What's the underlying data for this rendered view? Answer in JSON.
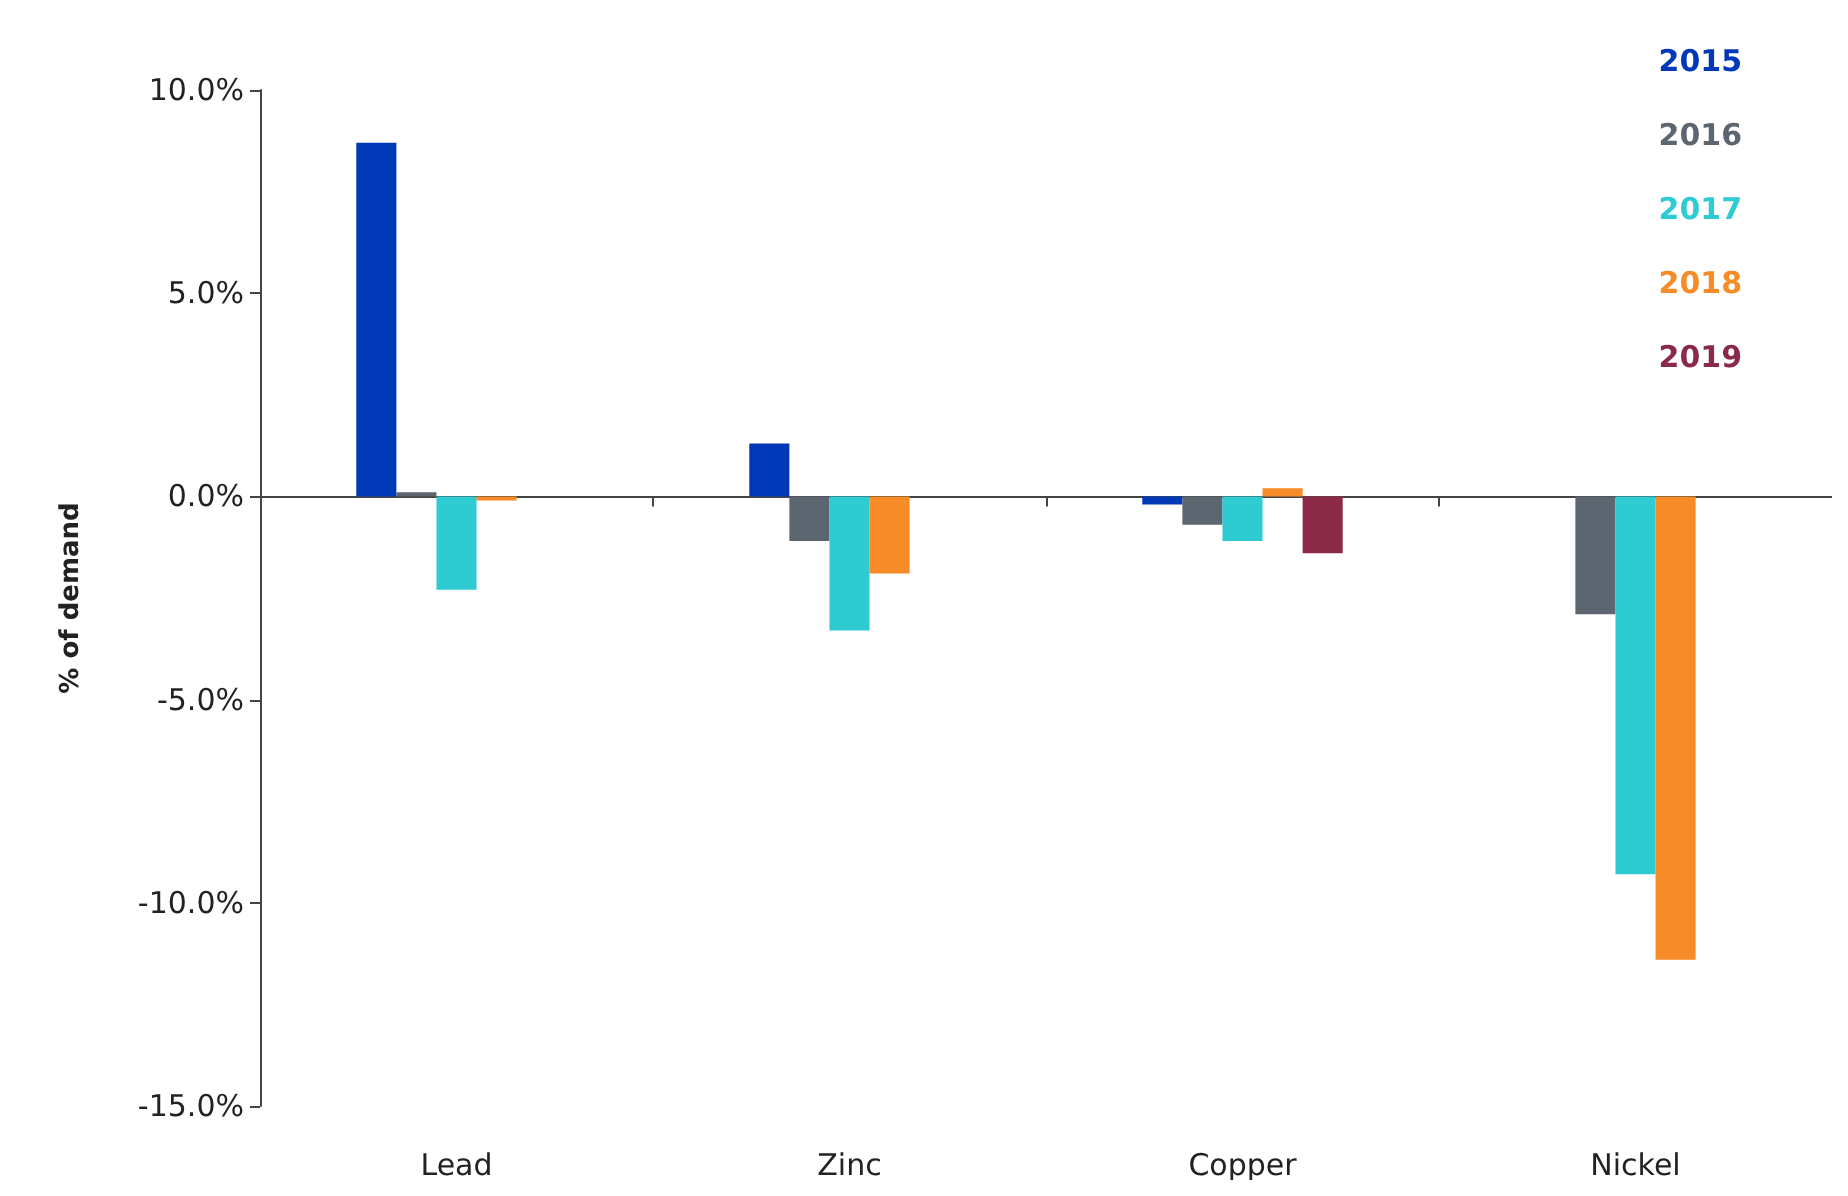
{
  "chart_data": {
    "type": "bar",
    "ylabel": "% of demand",
    "categories": [
      "Lead",
      "Zinc",
      "Copper",
      "Nickel"
    ],
    "series": [
      {
        "name": "2015",
        "color": "#0039b8",
        "values": [
          8.7,
          1.3,
          -0.2,
          null
        ]
      },
      {
        "name": "2016",
        "color": "#5b6670",
        "values": [
          0.1,
          -1.1,
          -0.7,
          -2.9
        ]
      },
      {
        "name": "2017",
        "color": "#2ecbd2",
        "values": [
          -2.3,
          -3.3,
          -1.1,
          -9.3
        ]
      },
      {
        "name": "2018",
        "color": "#f68b28",
        "values": [
          -0.1,
          -1.9,
          0.2,
          -11.4
        ]
      },
      {
        "name": "2019",
        "color": "#8b2a48",
        "values": [
          null,
          null,
          -1.4,
          null
        ]
      }
    ],
    "ylim": [
      -15,
      10
    ],
    "yticks": [
      {
        "value": -15,
        "label": "-15.0%"
      },
      {
        "value": -10,
        "label": "-10.0%"
      },
      {
        "value": -5,
        "label": "-5.0%"
      },
      {
        "value": 0,
        "label": "0.0%"
      },
      {
        "value": 5,
        "label": "5.0%"
      },
      {
        "value": 10,
        "label": "10.0%"
      }
    ],
    "legend": "top right"
  }
}
